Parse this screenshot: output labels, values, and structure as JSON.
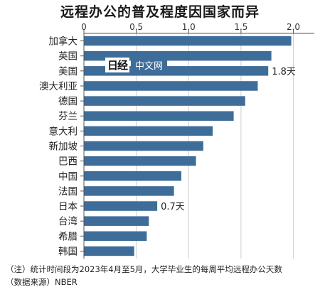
{
  "chart_data": {
    "type": "bar",
    "orientation": "horizontal",
    "title": "远程办公的普及程度因国家而异",
    "categories": [
      "加拿大",
      "英国",
      "美国",
      "澳大利亚",
      "德国",
      "芬兰",
      "意大利",
      "新加坡",
      "巴西",
      "中国",
      "法国",
      "日本",
      "台湾",
      "希腊",
      "韩国"
    ],
    "values": [
      1.98,
      1.79,
      1.76,
      1.66,
      1.54,
      1.43,
      1.23,
      1.14,
      1.07,
      0.93,
      0.86,
      0.7,
      0.62,
      0.6,
      0.48
    ],
    "xlim": [
      0,
      2.2
    ],
    "xticks": [
      "0",
      "0.5",
      "1.0",
      "1.5",
      "2.0"
    ],
    "xtick_values": [
      0,
      0.5,
      1.0,
      1.5,
      2.0
    ],
    "grid": true,
    "bar_color": "#3e6d99",
    "annotations": [
      {
        "category": "美国",
        "text": "1.8天"
      },
      {
        "category": "日本",
        "text": "0.7天"
      }
    ]
  },
  "watermark": {
    "logo": "日经",
    "text": "中文网",
    "accent": "#3e6d99"
  },
  "notes": [
    "（注）统计时间段为2023年4月至5月，大学毕业生的每周平均远程办公天数",
    "（数据来源）NBER"
  ]
}
